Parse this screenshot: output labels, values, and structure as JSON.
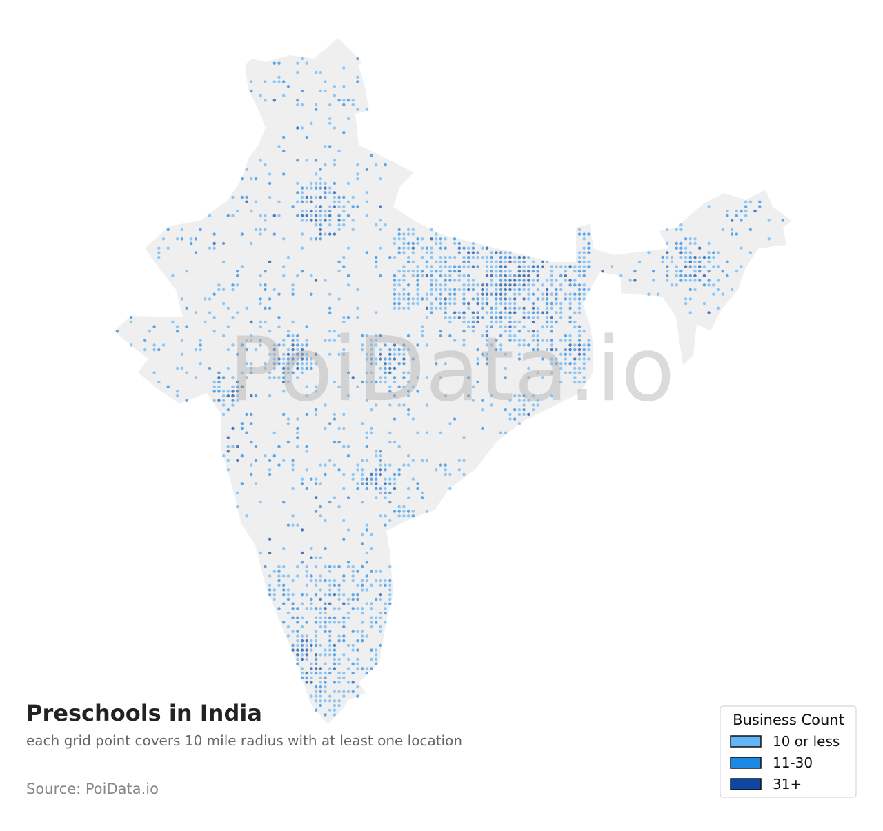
{
  "map": {
    "title": "Preschools in India",
    "subtitle": "each grid point covers 10 mile radius with at least one location",
    "source": "Source: PoiData.io",
    "watermark": "PoiData.io",
    "legend": {
      "title": "Business Count",
      "items": [
        {
          "label": "10 or less",
          "color": "#64b5f6"
        },
        {
          "label": "11-30",
          "color": "#1e88e5"
        },
        {
          "label": "31+",
          "color": "#0d47a1"
        }
      ]
    }
  }
}
